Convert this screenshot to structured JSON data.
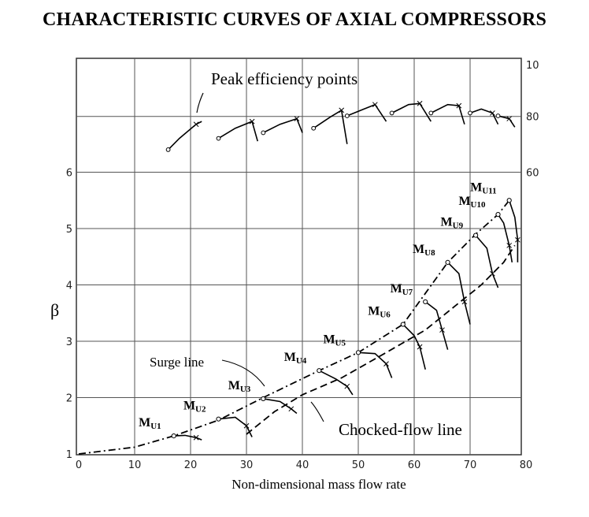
{
  "chart_data": {
    "type": "line",
    "title": "CHARACTERISTIC CURVES OF AXIAL COMPRESSORS",
    "xlabel": "Non-dimensional mass flow rate",
    "ylabel": "β",
    "xlim": [
      0,
      80
    ],
    "ylim": [
      1,
      7
    ],
    "x_ticks": [
      "0",
      "10",
      "20",
      "30",
      "40",
      "50",
      "60",
      "70",
      "80"
    ],
    "y_ticks": [
      "1",
      "2",
      "3",
      "4",
      "5",
      "6"
    ],
    "right_axis_ticks": [
      "60",
      "80",
      "10"
    ],
    "grid": true,
    "annotations": {
      "peak_efficiency": "Peak efficiency points",
      "surge_line": "Surge line",
      "choked_flow_line": "Chocked-flow line"
    },
    "surge_line": [
      [
        0,
        1.0
      ],
      [
        10,
        1.12
      ],
      [
        17,
        1.32
      ],
      [
        25,
        1.6
      ],
      [
        33,
        2.0
      ],
      [
        43,
        2.48
      ],
      [
        50,
        2.8
      ],
      [
        58,
        3.3
      ],
      [
        62,
        3.85
      ],
      [
        66,
        4.4
      ],
      [
        71,
        4.9
      ],
      [
        75,
        5.25
      ],
      [
        77,
        5.5
      ]
    ],
    "choked_line": [
      [
        30,
        1.35
      ],
      [
        35,
        1.75
      ],
      [
        40,
        2.05
      ],
      [
        47,
        2.35
      ],
      [
        55,
        2.8
      ],
      [
        62,
        3.2
      ],
      [
        67,
        3.6
      ],
      [
        72,
        4.0
      ],
      [
        76,
        4.4
      ],
      [
        78,
        4.7
      ]
    ],
    "speed_lines": [
      {
        "name": "MU1",
        "label_main": "M",
        "label_sub": "U1",
        "points": [
          [
            17,
            1.32
          ],
          [
            19,
            1.33
          ],
          [
            21,
            1.29
          ],
          [
            22,
            1.25
          ]
        ]
      },
      {
        "name": "MU2",
        "label_main": "M",
        "label_sub": "U2",
        "points": [
          [
            25,
            1.62
          ],
          [
            28,
            1.65
          ],
          [
            30,
            1.5
          ],
          [
            31,
            1.3
          ]
        ]
      },
      {
        "name": "MU3",
        "label_main": "M",
        "label_sub": "U3",
        "points": [
          [
            33,
            1.98
          ],
          [
            36,
            1.93
          ],
          [
            38,
            1.8
          ],
          [
            39,
            1.72
          ]
        ]
      },
      {
        "name": "MU4",
        "label_main": "M",
        "label_sub": "U4",
        "points": [
          [
            43,
            2.48
          ],
          [
            46,
            2.33
          ],
          [
            48,
            2.2
          ],
          [
            49,
            2.05
          ]
        ]
      },
      {
        "name": "MU5",
        "label_main": "M",
        "label_sub": "U5",
        "points": [
          [
            50,
            2.8
          ],
          [
            53,
            2.78
          ],
          [
            55,
            2.6
          ],
          [
            56,
            2.35
          ]
        ]
      },
      {
        "name": "MU6",
        "label_main": "M",
        "label_sub": "U6",
        "points": [
          [
            58,
            3.3
          ],
          [
            60,
            3.1
          ],
          [
            61,
            2.9
          ],
          [
            62,
            2.5
          ]
        ]
      },
      {
        "name": "MU7",
        "label_main": "M",
        "label_sub": "U7",
        "points": [
          [
            62,
            3.7
          ],
          [
            64,
            3.55
          ],
          [
            65,
            3.2
          ],
          [
            66,
            2.85
          ]
        ]
      },
      {
        "name": "MU8",
        "label_main": "M",
        "label_sub": "U8",
        "points": [
          [
            66,
            4.4
          ],
          [
            68,
            4.2
          ],
          [
            69,
            3.7
          ],
          [
            70,
            3.3
          ]
        ]
      },
      {
        "name": "MU9",
        "label_main": "M",
        "label_sub": "U9",
        "points": [
          [
            71,
            4.88
          ],
          [
            73,
            4.65
          ],
          [
            74,
            4.2
          ],
          [
            75,
            3.95
          ]
        ]
      },
      {
        "name": "MU10",
        "label_main": "M",
        "label_sub": "U10",
        "points": [
          [
            75,
            5.25
          ],
          [
            76,
            5.1
          ],
          [
            77,
            4.7
          ],
          [
            77.5,
            4.4
          ]
        ]
      },
      {
        "name": "MU11",
        "label_main": "M",
        "label_sub": "U11",
        "points": [
          [
            77,
            5.5
          ],
          [
            78,
            5.2
          ],
          [
            78.5,
            4.8
          ],
          [
            78.5,
            4.4
          ]
        ]
      }
    ],
    "efficiency_curves": [
      [
        [
          16,
          6.4
        ],
        [
          18,
          6.6
        ],
        [
          21,
          6.85
        ],
        [
          22,
          6.9
        ]
      ],
      [
        [
          25,
          6.6
        ],
        [
          28,
          6.78
        ],
        [
          31,
          6.9
        ],
        [
          32,
          6.55
        ]
      ],
      [
        [
          33,
          6.7
        ],
        [
          36,
          6.85
        ],
        [
          39,
          6.95
        ],
        [
          40,
          6.7
        ]
      ],
      [
        [
          42,
          6.78
        ],
        [
          45,
          6.98
        ],
        [
          47,
          7.1
        ],
        [
          48,
          6.5
        ]
      ],
      [
        [
          48,
          7.0
        ],
        [
          51,
          7.12
        ],
        [
          53,
          7.2
        ],
        [
          55,
          6.9
        ]
      ],
      [
        [
          56,
          7.05
        ],
        [
          59,
          7.2
        ],
        [
          61,
          7.22
        ],
        [
          63,
          6.9
        ]
      ],
      [
        [
          63,
          7.05
        ],
        [
          66,
          7.2
        ],
        [
          68,
          7.18
        ],
        [
          69,
          6.85
        ]
      ],
      [
        [
          70,
          7.05
        ],
        [
          72,
          7.12
        ],
        [
          74,
          7.05
        ],
        [
          75,
          6.85
        ]
      ],
      [
        [
          75,
          7.0
        ],
        [
          77,
          6.95
        ],
        [
          78,
          6.8
        ]
      ]
    ]
  }
}
